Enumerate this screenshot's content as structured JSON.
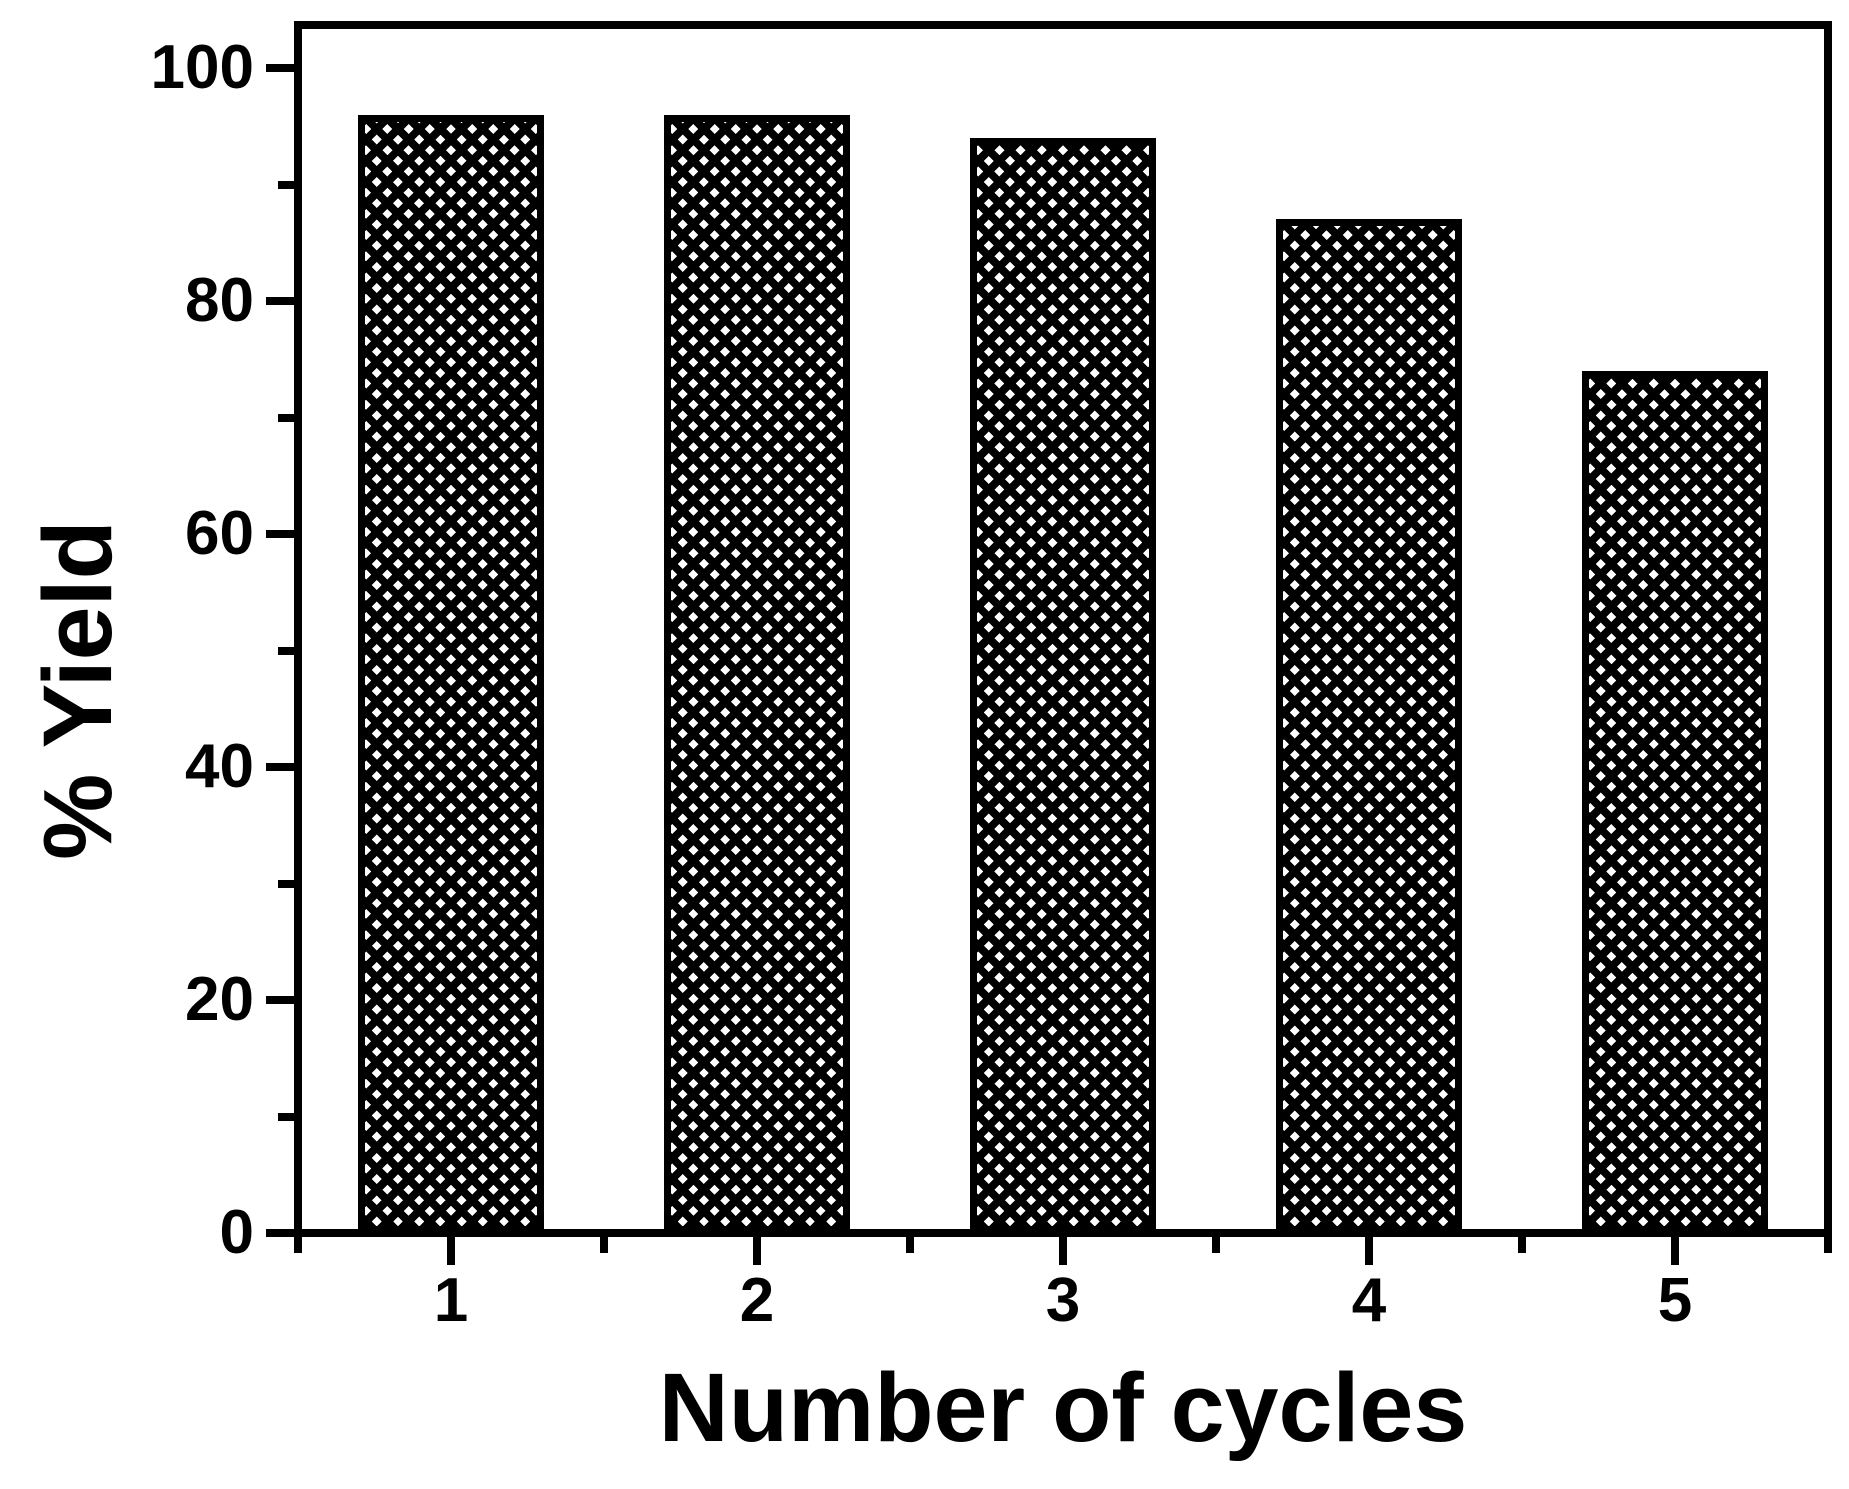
{
  "chart_data": {
    "type": "bar",
    "title": "",
    "xlabel": "Number of cycles",
    "ylabel": "% Yield",
    "categories": [
      "1",
      "2",
      "3",
      "4",
      "5"
    ],
    "values": [
      96,
      96,
      94,
      87,
      74
    ],
    "ylim": [
      0,
      103.7
    ],
    "yticks_major": [
      0,
      20,
      40,
      60,
      80,
      100
    ],
    "yticks_minor": [
      10,
      30,
      50,
      70,
      90
    ],
    "xticks_minor_positions": [
      0.5,
      1.5,
      2.5,
      3.5,
      4.5,
      5.5
    ],
    "bar_outline_color": "#000000",
    "bar_fill_color": "#ffffff",
    "bar_pattern": "diagonal-crosshatch",
    "axis_color": "#000000",
    "background_color": "#ffffff",
    "grid": false,
    "legend": false
  }
}
